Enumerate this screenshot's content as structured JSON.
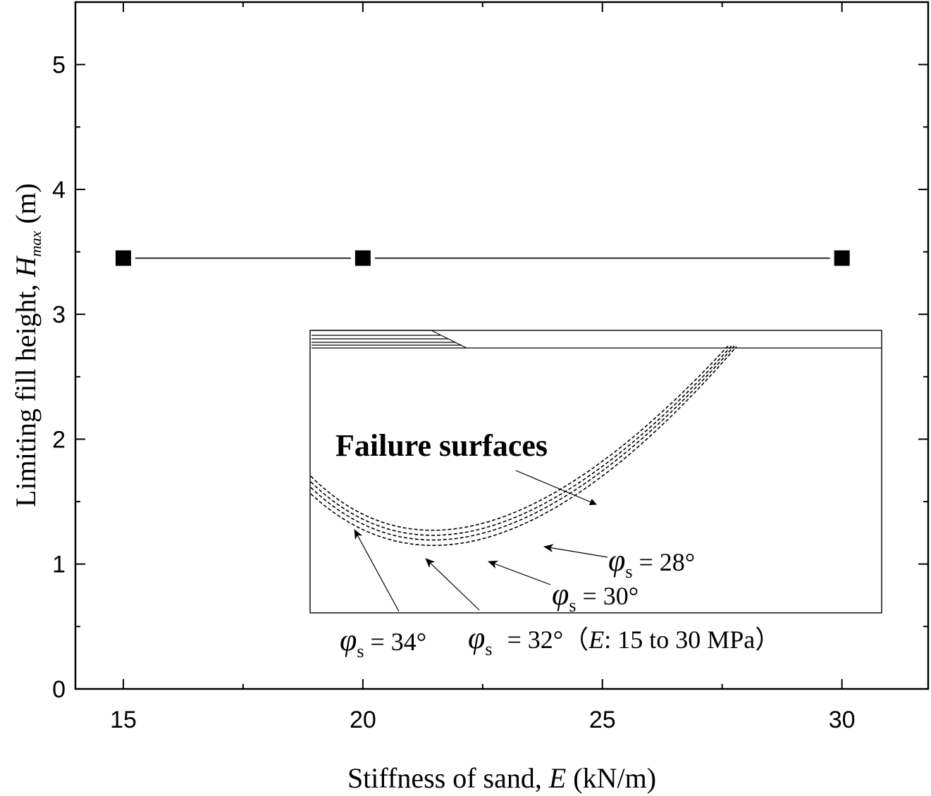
{
  "chart_data": {
    "type": "line",
    "title": "",
    "xlabel": "Stiffness of sand, E (kN/m)",
    "ylabel": "Limiting fill height, H_max (m)",
    "xlabel_parts": {
      "pre": "Stiffness of sand, ",
      "italic": "E",
      "post": " (kN/m)"
    },
    "ylabel_parts": {
      "pre": "Limiting fill height, ",
      "italic": "H",
      "sub": "max",
      "post": " (m)"
    },
    "xlim": [
      14,
      31.8
    ],
    "ylim": [
      0,
      5.5
    ],
    "x_ticks": [
      15,
      20,
      25,
      30
    ],
    "y_ticks": [
      0,
      1,
      2,
      3,
      4,
      5
    ],
    "series": [
      {
        "x": [
          15,
          20,
          30
        ],
        "y": [
          3.45,
          3.45,
          3.45
        ],
        "marker": "square",
        "color": "#000000"
      }
    ],
    "inset": {
      "title": "Failure surfaces",
      "labels": [
        {
          "phi": "φ",
          "sub": "s",
          "text": " = 28°"
        },
        {
          "phi": "φ",
          "sub": "s",
          "text": " = 30°"
        },
        {
          "phi": "φ",
          "sub": "s",
          "text": " = 34°"
        },
        {
          "phi": "φ",
          "sub": "s",
          "text": " = 32°"
        }
      ],
      "range_note": {
        "pre": "（",
        "italic": "E",
        "post": ": 15 to 30 MPa）"
      }
    }
  }
}
